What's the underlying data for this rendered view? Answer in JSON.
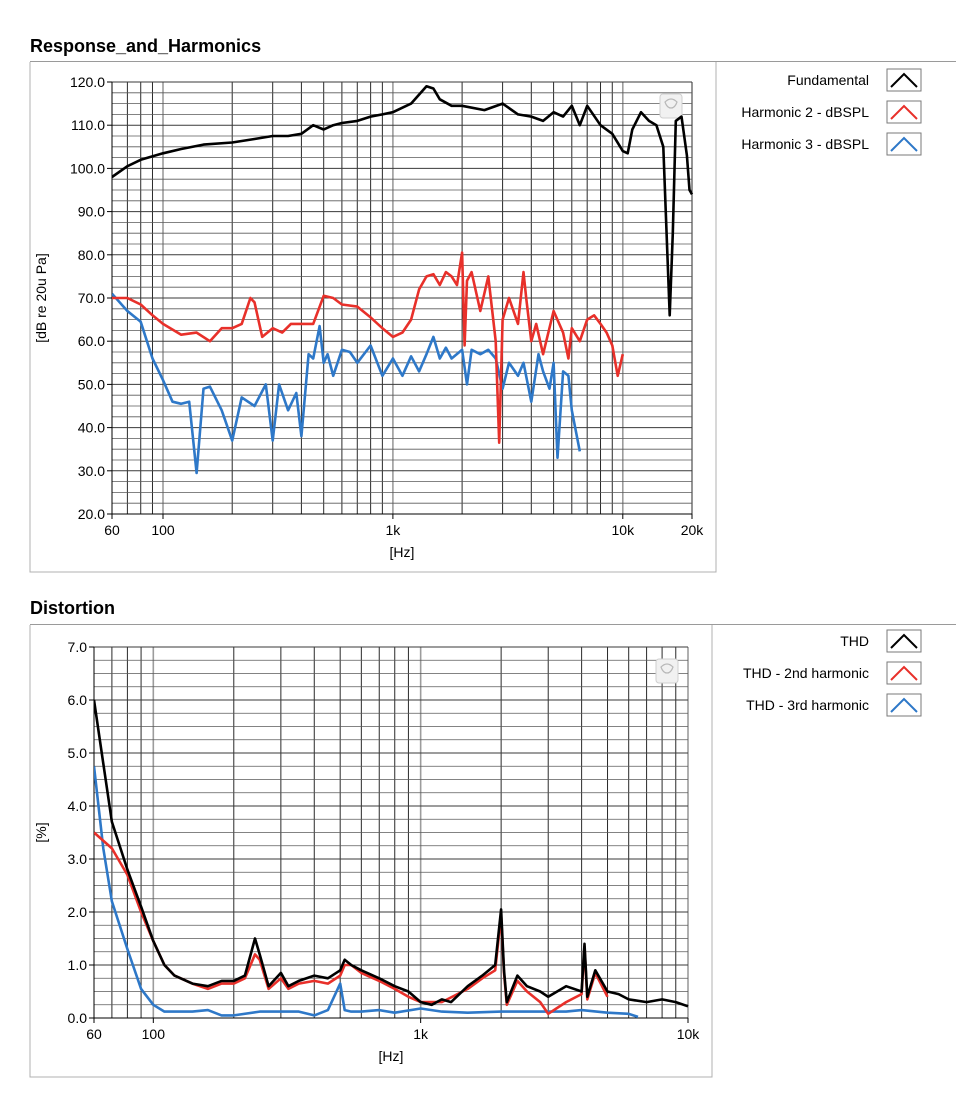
{
  "chart_data": [
    {
      "type": "line",
      "title": "Response_and_Harmonics",
      "xlabel": "[Hz]",
      "ylabel": "[dB re 20u Pa]",
      "xscale": "log",
      "xlim": [
        60,
        20000
      ],
      "ylim": [
        20,
        120
      ],
      "xticks": [
        {
          "value": 60,
          "label": "60"
        },
        {
          "value": 100,
          "label": "100"
        },
        {
          "value": 1000,
          "label": "1k"
        },
        {
          "value": 10000,
          "label": "10k"
        },
        {
          "value": 20000,
          "label": "20k"
        }
      ],
      "yticks": [
        {
          "value": 120,
          "label": "120.0"
        },
        {
          "value": 110,
          "label": "110.0"
        },
        {
          "value": 100,
          "label": "100.0"
        },
        {
          "value": 90,
          "label": "90.0"
        },
        {
          "value": 80,
          "label": "80.0"
        },
        {
          "value": 70,
          "label": "70.0"
        },
        {
          "value": 60,
          "label": "60.0"
        },
        {
          "value": 50,
          "label": "50.0"
        },
        {
          "value": 40,
          "label": "40.0"
        },
        {
          "value": 30,
          "label": "30.0"
        },
        {
          "value": 20,
          "label": "20.0"
        }
      ],
      "grid": true,
      "legend_position": "right",
      "series": [
        {
          "name": "Fundamental",
          "color": "#000000",
          "x": [
            60,
            70,
            80,
            100,
            120,
            150,
            200,
            250,
            300,
            350,
            400,
            450,
            500,
            550,
            600,
            700,
            800,
            900,
            1000,
            1200,
            1400,
            1500,
            1600,
            1800,
            2000,
            2500,
            3000,
            3500,
            4000,
            4500,
            5000,
            5500,
            6000,
            6500,
            7000,
            8000,
            9000,
            10000,
            10500,
            11000,
            12000,
            13000,
            14000,
            15000,
            16000,
            16500,
            17000,
            18000,
            19000,
            19500,
            20000
          ],
          "y": [
            98,
            100.5,
            102,
            103.5,
            104.5,
            105.5,
            106,
            106.8,
            107.5,
            107.5,
            108,
            110,
            109,
            110,
            110.5,
            111,
            112,
            112.5,
            113,
            115,
            119,
            118.5,
            116,
            114.5,
            114.5,
            113.5,
            115,
            112.5,
            112,
            111,
            113,
            112,
            114.5,
            110,
            114.5,
            110,
            108,
            104,
            103.5,
            109,
            113,
            111,
            110,
            105,
            66,
            85,
            111,
            112,
            103,
            95,
            94
          ]
        },
        {
          "name": "Harmonic 2 - dBSPL",
          "color": "#e8302a",
          "x": [
            60,
            70,
            80,
            90,
            100,
            120,
            140,
            160,
            180,
            200,
            220,
            240,
            250,
            270,
            300,
            330,
            360,
            400,
            450,
            500,
            550,
            600,
            700,
            800,
            900,
            1000,
            1100,
            1200,
            1300,
            1400,
            1500,
            1600,
            1700,
            1800,
            1900,
            2000,
            2050,
            2100,
            2200,
            2400,
            2600,
            2800,
            2900,
            3000,
            3200,
            3500,
            3700,
            3800,
            4000,
            4200,
            4500,
            5000,
            5500,
            5800,
            6000,
            6500,
            7000,
            7500,
            8000,
            8500,
            9000,
            9500,
            10000
          ],
          "y": [
            70,
            70,
            68.5,
            66,
            64,
            61.5,
            62,
            60,
            63,
            63,
            64,
            70,
            69,
            61,
            63,
            62,
            64,
            64,
            64,
            70.5,
            70,
            68.5,
            68,
            65.5,
            63,
            61,
            62,
            65,
            72,
            75,
            75.5,
            73,
            76,
            75,
            73,
            80.5,
            59,
            74,
            76,
            67,
            75,
            60,
            36.5,
            65,
            70,
            64,
            76,
            70,
            60,
            64,
            57,
            67,
            62,
            56,
            63,
            60,
            65,
            66,
            64,
            62,
            59,
            52,
            57
          ]
        },
        {
          "name": "Harmonic 3 - dBSPL",
          "color": "#2e78c8",
          "x": [
            60,
            70,
            80,
            90,
            100,
            110,
            120,
            130,
            140,
            150,
            160,
            180,
            200,
            220,
            250,
            280,
            300,
            320,
            350,
            380,
            400,
            430,
            450,
            480,
            500,
            520,
            550,
            600,
            650,
            700,
            800,
            900,
            1000,
            1100,
            1200,
            1300,
            1400,
            1500,
            1600,
            1700,
            1800,
            2000,
            2100,
            2200,
            2400,
            2600,
            2800,
            3000,
            3200,
            3500,
            3700,
            4000,
            4300,
            4500,
            4800,
            5000,
            5200,
            5500,
            5800,
            6000,
            6500
          ],
          "y": [
            71,
            67,
            64.5,
            56,
            51,
            46,
            45.5,
            46,
            29.5,
            49,
            49.5,
            44,
            37,
            47,
            45,
            50,
            37,
            50,
            44,
            48,
            38,
            57,
            56,
            63.5,
            55,
            57,
            52,
            58,
            57.5,
            55,
            59,
            52,
            56,
            52,
            56.5,
            53,
            57,
            61,
            56,
            58.5,
            56,
            58,
            50,
            58,
            57,
            58,
            56,
            49,
            55,
            52,
            55,
            46,
            57,
            53,
            49,
            55,
            33,
            53,
            52,
            44,
            34.5
          ]
        }
      ]
    },
    {
      "type": "line",
      "title": "Distortion",
      "xlabel": "[Hz]",
      "ylabel": "[%]",
      "xscale": "log",
      "xlim": [
        60,
        10000
      ],
      "ylim": [
        0,
        7
      ],
      "xticks": [
        {
          "value": 60,
          "label": "60"
        },
        {
          "value": 100,
          "label": "100"
        },
        {
          "value": 1000,
          "label": "1k"
        },
        {
          "value": 10000,
          "label": "10k"
        }
      ],
      "yticks": [
        {
          "value": 7,
          "label": "7.0"
        },
        {
          "value": 6,
          "label": "6.0"
        },
        {
          "value": 5,
          "label": "5.0"
        },
        {
          "value": 4,
          "label": "4.0"
        },
        {
          "value": 3,
          "label": "3.0"
        },
        {
          "value": 2,
          "label": "2.0"
        },
        {
          "value": 1,
          "label": "1.0"
        },
        {
          "value": 0,
          "label": "0.0"
        }
      ],
      "grid": true,
      "legend_position": "right",
      "series": [
        {
          "name": "THD",
          "color": "#000000",
          "x": [
            60,
            65,
            70,
            80,
            90,
            100,
            110,
            120,
            140,
            160,
            180,
            200,
            220,
            240,
            250,
            270,
            300,
            320,
            350,
            400,
            450,
            500,
            520,
            550,
            600,
            700,
            800,
            900,
            1000,
            1100,
            1200,
            1300,
            1500,
            1700,
            1900,
            2000,
            2050,
            2100,
            2300,
            2500,
            2800,
            3000,
            3500,
            4000,
            4100,
            4200,
            4500,
            5000,
            5500,
            6000,
            7000,
            8000,
            9000,
            10000
          ],
          "y": [
            6.0,
            4.8,
            3.7,
            2.8,
            2.1,
            1.45,
            1.0,
            0.8,
            0.65,
            0.6,
            0.7,
            0.7,
            0.8,
            1.5,
            1.2,
            0.6,
            0.85,
            0.6,
            0.7,
            0.8,
            0.75,
            0.9,
            1.1,
            1.0,
            0.9,
            0.75,
            0.6,
            0.5,
            0.3,
            0.25,
            0.35,
            0.3,
            0.6,
            0.8,
            1.0,
            2.05,
            0.9,
            0.3,
            0.8,
            0.6,
            0.5,
            0.4,
            0.6,
            0.5,
            1.4,
            0.4,
            0.9,
            0.5,
            0.45,
            0.35,
            0.3,
            0.35,
            0.3,
            0.22
          ]
        },
        {
          "name": "THD - 2nd harmonic",
          "color": "#e8302a",
          "x": [
            60,
            70,
            80,
            90,
            100,
            110,
            120,
            140,
            160,
            180,
            200,
            220,
            240,
            250,
            270,
            300,
            320,
            350,
            400,
            450,
            500,
            520,
            550,
            600,
            700,
            800,
            900,
            1000,
            1200,
            1500,
            1700,
            1900,
            2000,
            2050,
            2100,
            2300,
            2500,
            2800,
            3000,
            3500,
            4000,
            4100,
            4200,
            4500,
            5000
          ],
          "y": [
            3.5,
            3.2,
            2.7,
            2.0,
            1.45,
            1.0,
            0.8,
            0.65,
            0.55,
            0.65,
            0.65,
            0.75,
            1.2,
            1.1,
            0.55,
            0.75,
            0.55,
            0.65,
            0.7,
            0.65,
            0.8,
            1.0,
            1.0,
            0.85,
            0.7,
            0.55,
            0.4,
            0.3,
            0.3,
            0.55,
            0.75,
            0.9,
            1.95,
            0.85,
            0.25,
            0.7,
            0.5,
            0.3,
            0.08,
            0.3,
            0.45,
            1.35,
            0.35,
            0.85,
            0.4
          ]
        },
        {
          "name": "THD - 3rd harmonic",
          "color": "#2e78c8",
          "x": [
            60,
            65,
            70,
            80,
            90,
            100,
            110,
            120,
            140,
            160,
            180,
            200,
            250,
            300,
            350,
            400,
            450,
            500,
            520,
            550,
            600,
            700,
            800,
            1000,
            1200,
            1500,
            2000,
            2500,
            3000,
            3500,
            4000,
            5000,
            6000,
            6500
          ],
          "y": [
            4.75,
            3.2,
            2.2,
            1.3,
            0.55,
            0.25,
            0.12,
            0.12,
            0.12,
            0.15,
            0.05,
            0.05,
            0.12,
            0.12,
            0.12,
            0.05,
            0.15,
            0.65,
            0.15,
            0.12,
            0.12,
            0.15,
            0.1,
            0.18,
            0.12,
            0.1,
            0.12,
            0.12,
            0.12,
            0.12,
            0.15,
            0.1,
            0.08,
            0.02
          ]
        }
      ]
    }
  ]
}
